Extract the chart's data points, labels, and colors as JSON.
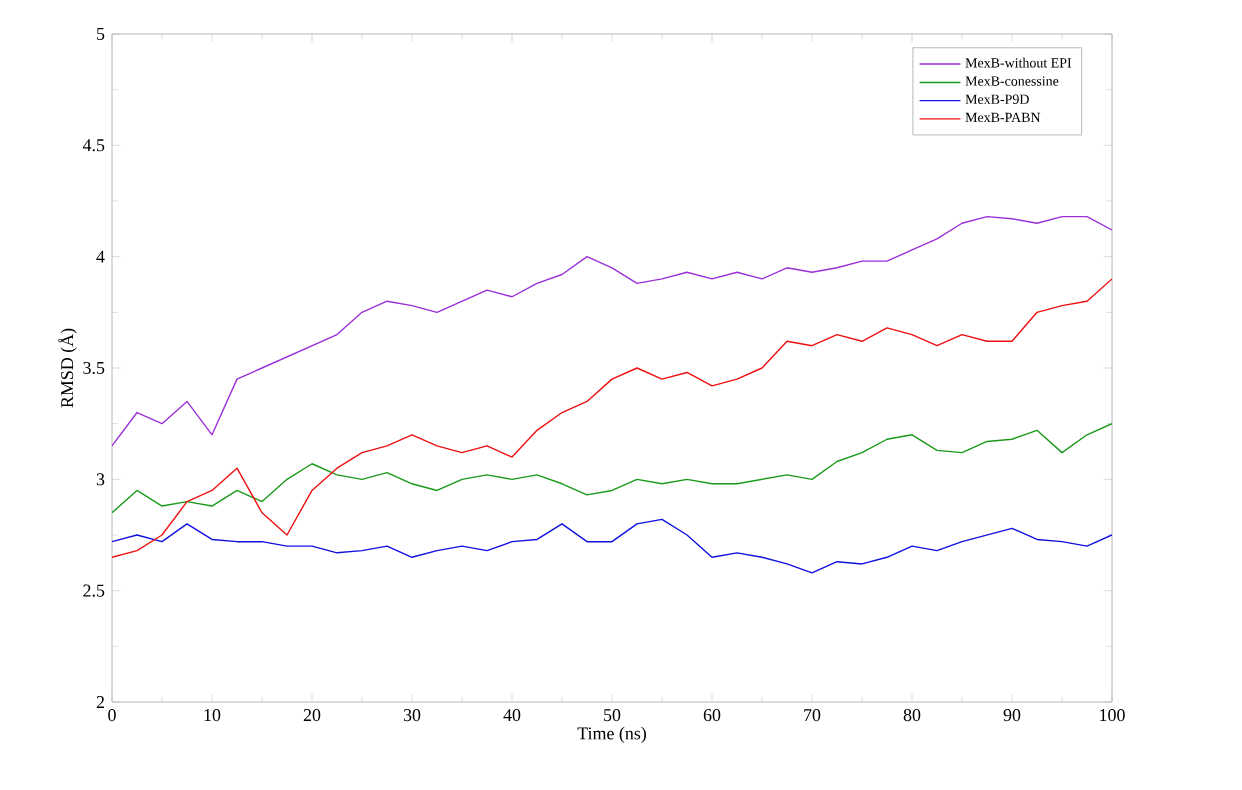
{
  "chart_data": {
    "type": "line",
    "xlabel": "Time (ns)",
    "ylabel": "RMSD (Å)",
    "x": [
      0,
      2.5,
      5,
      7.5,
      10,
      12.5,
      15,
      17.5,
      20,
      22.5,
      25,
      27.5,
      30,
      32.5,
      35,
      37.5,
      40,
      42.5,
      45,
      47.5,
      50,
      52.5,
      55,
      57.5,
      60,
      62.5,
      65,
      67.5,
      70,
      72.5,
      75,
      77.5,
      80,
      82.5,
      85,
      87.5,
      90,
      92.5,
      95,
      97.5,
      100
    ],
    "xlim": [
      0,
      100
    ],
    "ylim": [
      2,
      5
    ],
    "xticks": [
      0,
      10,
      20,
      30,
      40,
      50,
      60,
      70,
      80,
      90,
      100
    ],
    "yticks": [
      2,
      2.5,
      3,
      3.5,
      4,
      4.5,
      5
    ],
    "grid": false,
    "legend": "top right",
    "marker": "none",
    "series": [
      {
        "name": "MexB-without EPI",
        "color": "#9b30d9",
        "values": [
          3.15,
          3.3,
          3.25,
          3.35,
          3.2,
          3.45,
          3.5,
          3.55,
          3.6,
          3.65,
          3.75,
          3.8,
          3.78,
          3.75,
          3.8,
          3.85,
          3.82,
          3.88,
          3.92,
          4.0,
          3.95,
          3.88,
          3.9,
          3.93,
          3.9,
          3.93,
          3.9,
          3.95,
          3.93,
          3.95,
          3.98,
          3.98,
          4.03,
          4.08,
          4.15,
          4.18,
          4.17,
          4.15,
          4.18,
          4.18,
          4.12
        ]
      },
      {
        "name": "MexB-conessine",
        "color": "#1a9a1a",
        "values": [
          2.85,
          2.95,
          2.88,
          2.9,
          2.88,
          2.95,
          2.9,
          3.0,
          3.07,
          3.02,
          3.0,
          3.03,
          2.98,
          2.95,
          3.0,
          3.02,
          3.0,
          3.02,
          2.98,
          2.93,
          2.95,
          3.0,
          2.98,
          3.0,
          2.98,
          2.98,
          3.0,
          3.02,
          3.0,
          3.08,
          3.12,
          3.18,
          3.2,
          3.13,
          3.12,
          3.17,
          3.18,
          3.22,
          3.12,
          3.2,
          3.25
        ]
      },
      {
        "name": "MexB-P9D",
        "color": "#1010e0",
        "values": [
          2.72,
          2.75,
          2.72,
          2.8,
          2.73,
          2.72,
          2.72,
          2.7,
          2.7,
          2.67,
          2.68,
          2.7,
          2.65,
          2.68,
          2.7,
          2.68,
          2.72,
          2.73,
          2.8,
          2.72,
          2.72,
          2.8,
          2.82,
          2.75,
          2.65,
          2.67,
          2.65,
          2.62,
          2.58,
          2.63,
          2.62,
          2.65,
          2.7,
          2.68,
          2.72,
          2.75,
          2.78,
          2.73,
          2.72,
          2.7,
          2.75
        ]
      },
      {
        "name": "MexB-PABN",
        "color": "#ee1010",
        "values": [
          2.65,
          2.68,
          2.75,
          2.9,
          2.95,
          3.05,
          2.85,
          2.75,
          2.95,
          3.05,
          3.12,
          3.15,
          3.2,
          3.15,
          3.12,
          3.15,
          3.1,
          3.22,
          3.3,
          3.35,
          3.45,
          3.5,
          3.45,
          3.48,
          3.42,
          3.45,
          3.5,
          3.62,
          3.6,
          3.65,
          3.62,
          3.68,
          3.65,
          3.6,
          3.65,
          3.62,
          3.62,
          3.75,
          3.78,
          3.8,
          3.9
        ]
      }
    ]
  }
}
